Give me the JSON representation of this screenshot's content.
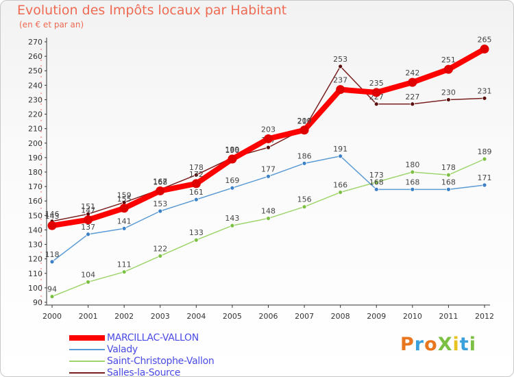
{
  "header": {
    "title": "Evolution des Impôts locaux par Habitant",
    "subtitle": "(en € et par an)"
  },
  "logo": {
    "text": "ProXiti",
    "letters": [
      {
        "ch": "P",
        "color": "#e8761e"
      },
      {
        "ch": "r",
        "color": "#39a0dc"
      },
      {
        "ch": "o",
        "color": "#e8761e"
      },
      {
        "ch": "X",
        "color": "#7cc043"
      },
      {
        "ch": "i",
        "color": "#e8c21e"
      },
      {
        "ch": "t",
        "color": "#39a0dc"
      },
      {
        "ch": "i",
        "color": "#7cc043"
      }
    ]
  },
  "chart_data": {
    "type": "line",
    "title": "Evolution des Impôts locaux par Habitant",
    "subtitle": "(en € et par an)",
    "xlabel": "",
    "ylabel": "",
    "ylim": [
      90,
      270
    ],
    "ystep": 10,
    "grid": false,
    "legend_position": "bottom-left",
    "x": [
      "2000",
      "2001",
      "2002",
      "2003",
      "2004",
      "2005",
      "2006",
      "2007",
      "2008",
      "2009",
      "2010",
      "2011",
      "2012"
    ],
    "series": [
      {
        "name": "Salles-la-Source",
        "color": "#7a1e1e",
        "marker": "#5a1010",
        "values": [
          146,
          151,
          159,
          168,
          178,
          190,
          197,
          210,
          253,
          227,
          227,
          230,
          231
        ]
      },
      {
        "name": "Saint-Christophe-Vallon",
        "color": "#9ed46c",
        "marker": "#7cc043",
        "values": [
          94,
          104,
          111,
          122,
          133,
          143,
          148,
          156,
          166,
          173,
          180,
          178,
          189
        ]
      },
      {
        "name": "Valady",
        "color": "#5b9bd5",
        "marker": "#3c80c8",
        "values": [
          118,
          137,
          141,
          153,
          161,
          169,
          177,
          186,
          191,
          168,
          168,
          168,
          171
        ]
      },
      {
        "name": "MARCILLAC-VALLON",
        "color": "#ff0000",
        "marker": "#e00000",
        "values": [
          143,
          147,
          155,
          167,
          172,
          189,
          203,
          209,
          237,
          235,
          242,
          251,
          265
        ]
      }
    ]
  },
  "legend": {
    "items": [
      {
        "label": "MARCILLAC-VALLON",
        "color": "#ff0000",
        "weight": 8
      },
      {
        "label": "Valady",
        "color": "#5b9bd5",
        "weight": 2
      },
      {
        "label": "Saint-Christophe-Vallon",
        "color": "#9ed46c",
        "weight": 2
      },
      {
        "label": "Salles-la-Source",
        "color": "#7a1e1e",
        "weight": 2
      }
    ]
  }
}
